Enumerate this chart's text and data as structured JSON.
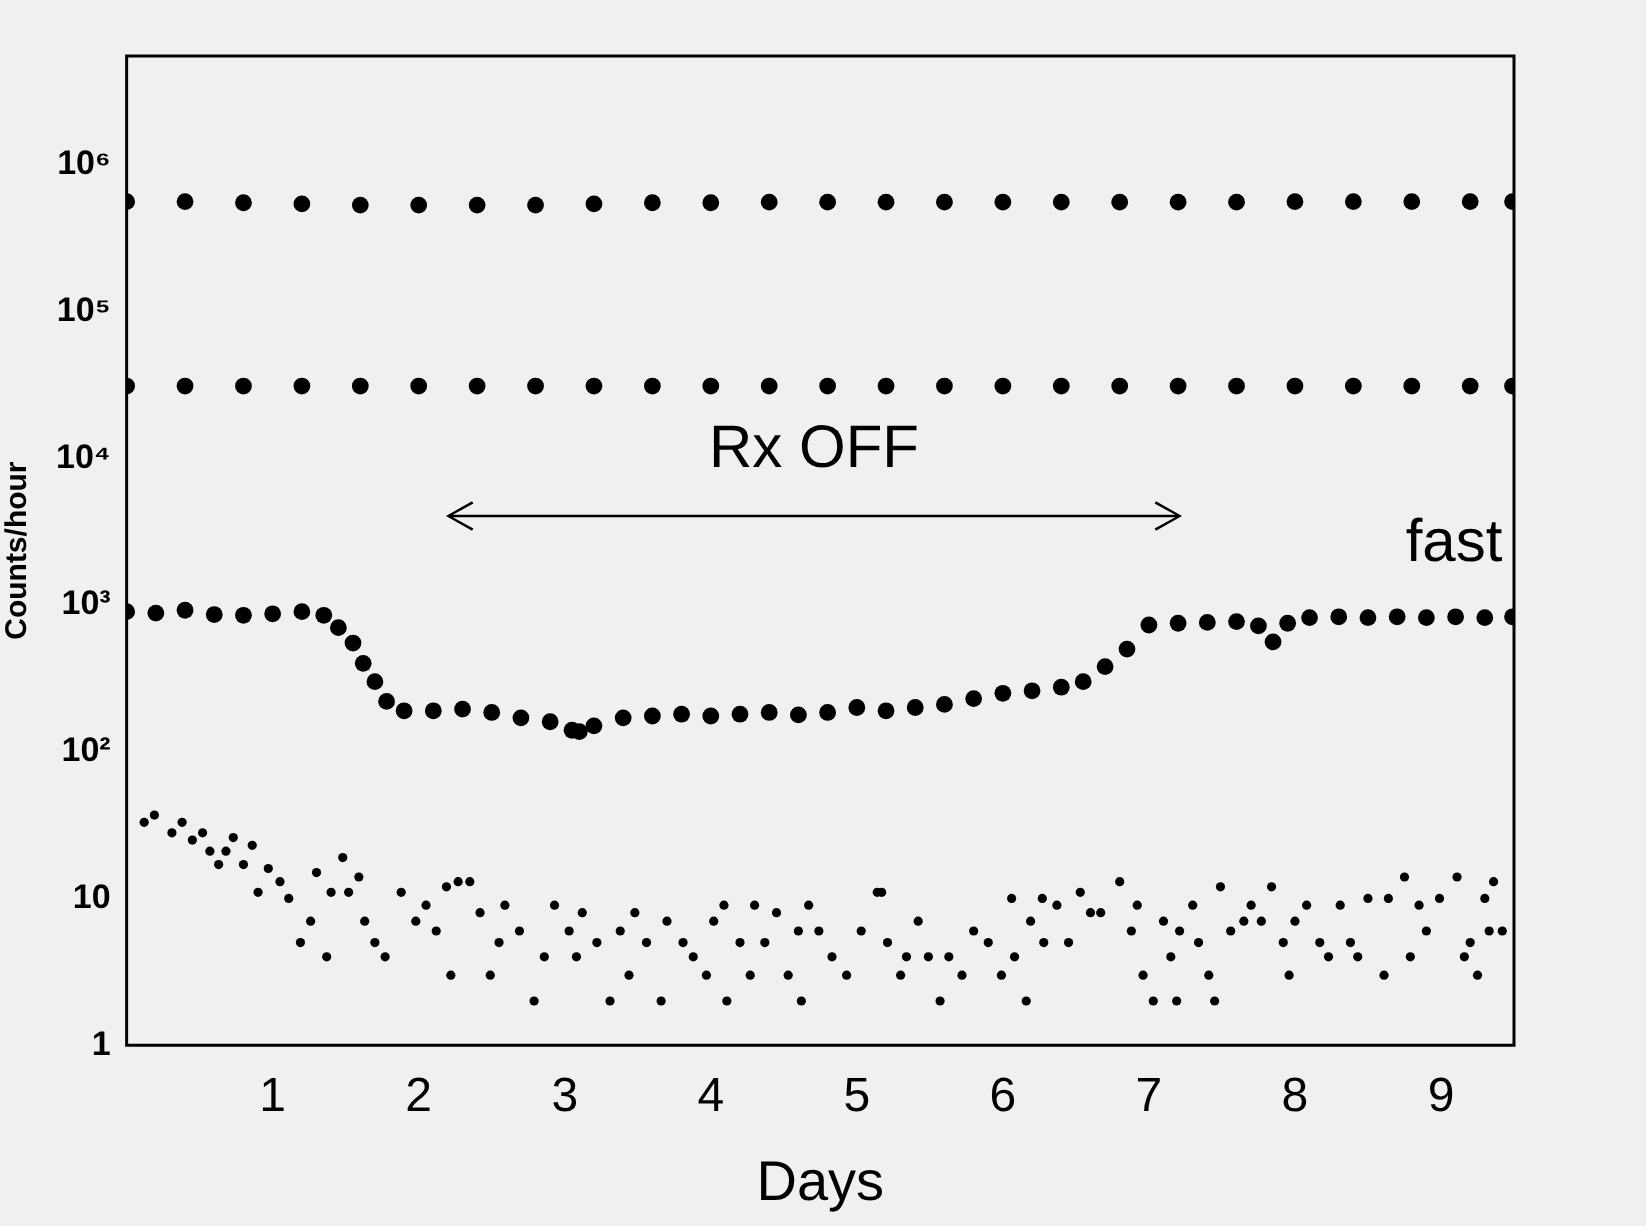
{
  "chart_data": {
    "type": "scatter",
    "xlabel": "Days",
    "ylabel": "Counts/hour",
    "log": "y",
    "grid": false,
    "legend": false,
    "marker": "circle",
    "xlim": [
      0,
      9.5
    ],
    "xticks": [
      1,
      2,
      3,
      4,
      5,
      6,
      7,
      8,
      9
    ],
    "ylim": [
      1,
      5500000
    ],
    "yticks": [
      1,
      10,
      {
        "value": 100,
        "label": "10²"
      },
      {
        "value": 1000,
        "label": "10³"
      },
      {
        "value": 10000,
        "label": "10⁴"
      },
      {
        "value": 100000,
        "label": "10⁵"
      },
      {
        "value": 1000000,
        "label": "10⁶"
      }
    ],
    "annotations": [
      "Rx OFF",
      "fast"
    ],
    "series": [
      {
        "color": "#000000",
        "x": [
          0,
          0.4,
          0.8,
          1.2,
          1.6,
          2.0,
          2.4,
          2.8,
          3.2,
          3.6,
          4.0,
          4.4,
          4.8,
          5.2,
          5.6,
          6.0,
          6.4,
          6.8,
          7.2,
          7.6,
          8.0,
          8.4,
          8.8,
          9.2,
          9.49
        ],
        "values": [
          560000,
          560000,
          550000,
          540000,
          530000,
          530000,
          530000,
          530000,
          540000,
          550000,
          550000,
          555000,
          555000,
          555000,
          555000,
          555000,
          555000,
          555000,
          555000,
          555000,
          560000,
          560000,
          560000,
          560000,
          560000
        ]
      },
      {
        "color": "#000000",
        "x": [
          0,
          0.4,
          0.8,
          1.2,
          1.6,
          2.0,
          2.4,
          2.8,
          3.2,
          3.6,
          4.0,
          4.4,
          4.8,
          5.2,
          5.6,
          6.0,
          6.4,
          6.8,
          7.2,
          7.6,
          8.0,
          8.4,
          8.8,
          9.2,
          9.49
        ],
        "values": [
          31000,
          31000,
          31000,
          31000,
          31000,
          31000,
          31000,
          31000,
          31000,
          31000,
          31000,
          31000,
          31000,
          31000,
          31000,
          31000,
          31000,
          31000,
          31000,
          31000,
          31000,
          31000,
          31000,
          31000,
          31000
        ]
      },
      {
        "color": "#000000",
        "x": [
          0,
          0.2,
          0.4,
          0.6,
          0.8,
          1.0,
          1.2,
          1.35,
          1.45,
          1.55,
          1.62,
          1.7,
          1.78,
          1.9,
          2.1,
          2.3,
          2.5,
          2.7,
          2.9,
          3.05,
          3.1,
          3.2,
          3.4,
          3.6,
          3.8,
          4.0,
          4.2,
          4.4,
          4.6,
          4.8,
          5.0,
          5.2,
          5.4,
          5.6,
          5.8,
          6.0,
          6.2,
          6.4,
          6.55,
          6.7,
          6.85,
          7.0,
          7.2,
          7.4,
          7.6,
          7.75,
          7.85,
          7.95,
          8.1,
          8.3,
          8.5,
          8.7,
          8.9,
          9.1,
          9.3,
          9.49
        ],
        "values": [
          900,
          880,
          920,
          860,
          850,
          870,
          900,
          850,
          700,
          550,
          400,
          300,
          220,
          190,
          190,
          195,
          185,
          170,
          160,
          140,
          137,
          150,
          170,
          175,
          180,
          175,
          180,
          185,
          178,
          185,
          200,
          190,
          200,
          210,
          230,
          250,
          260,
          275,
          300,
          380,
          500,
          730,
          750,
          760,
          770,
          720,
          560,
          750,
          820,
          830,
          820,
          830,
          820,
          830,
          820,
          830
        ]
      },
      {
        "color": "#000000",
        "x": [
          0.12,
          0.19,
          0.31,
          0.38,
          0.45,
          0.52,
          0.57,
          0.63,
          0.68,
          0.73,
          0.8,
          0.86,
          0.9,
          0.97,
          1.05,
          1.11,
          1.19,
          1.26,
          1.3,
          1.37,
          1.4,
          1.48,
          1.52,
          1.59,
          1.63,
          1.7,
          1.77,
          1.88,
          1.98,
          2.05,
          2.12,
          2.19,
          2.22,
          2.27,
          2.35,
          2.42,
          2.49,
          2.55,
          2.59,
          2.69,
          2.79,
          2.86,
          2.93,
          3.03,
          3.08,
          3.12,
          3.22,
          3.31,
          3.38,
          3.44,
          3.48,
          3.56,
          3.66,
          3.7,
          3.81,
          3.88,
          3.97,
          4.02,
          4.09,
          4.11,
          4.2,
          4.27,
          4.3,
          4.37,
          4.45,
          4.53,
          4.6,
          4.62,
          4.67,
          4.74,
          4.83,
          4.93,
          5.03,
          5.14,
          5.17,
          5.21,
          5.3,
          5.34,
          5.42,
          5.49,
          5.57,
          5.63,
          5.72,
          5.8,
          5.9,
          5.99,
          6.06,
          6.08,
          6.16,
          6.19,
          6.27,
          6.28,
          6.37,
          6.45,
          6.53,
          6.6,
          6.67,
          6.8,
          6.88,
          6.92,
          6.96,
          7.03,
          7.1,
          7.15,
          7.19,
          7.21,
          7.3,
          7.34,
          7.41,
          7.45,
          7.49,
          7.56,
          7.65,
          7.7,
          7.77,
          7.84,
          7.92,
          7.96,
          8.0,
          8.08,
          8.17,
          8.23,
          8.31,
          8.38,
          8.43,
          8.5,
          8.61,
          8.64,
          8.75,
          8.79,
          8.85,
          8.9,
          8.99,
          9.11,
          9.16,
          9.2,
          9.25,
          9.3,
          9.33,
          9.36,
          9.42
        ],
        "values": [
          33,
          37,
          28,
          33,
          25,
          28,
          21,
          17,
          21,
          26,
          17,
          23,
          11,
          16,
          13,
          10,
          5,
          7,
          15,
          4,
          11,
          19,
          11,
          14,
          7,
          5,
          4,
          11,
          7,
          9,
          6,
          12,
          3,
          13,
          13,
          8,
          3,
          5,
          9,
          6,
          2,
          4,
          9,
          6,
          4,
          8,
          5,
          2,
          6,
          3,
          8,
          5,
          2,
          7,
          5,
          4,
          3,
          7,
          9,
          2,
          5,
          3,
          9,
          5,
          8,
          3,
          6,
          2,
          9,
          6,
          4,
          3,
          6,
          11,
          11,
          5,
          3,
          4,
          7,
          4,
          2,
          4,
          3,
          6,
          5,
          3,
          10,
          4,
          2,
          7,
          10,
          5,
          9,
          5,
          11,
          8,
          8,
          13,
          6,
          9,
          3,
          2,
          7,
          4,
          2,
          6,
          9,
          5,
          3,
          2,
          12,
          6,
          7,
          9,
          7,
          12,
          5,
          3,
          7,
          9,
          5,
          4,
          9,
          5,
          4,
          10,
          3,
          10,
          14,
          4,
          9,
          6,
          10,
          14,
          4,
          5,
          3,
          10,
          6,
          13,
          6
        ]
      }
    ]
  }
}
